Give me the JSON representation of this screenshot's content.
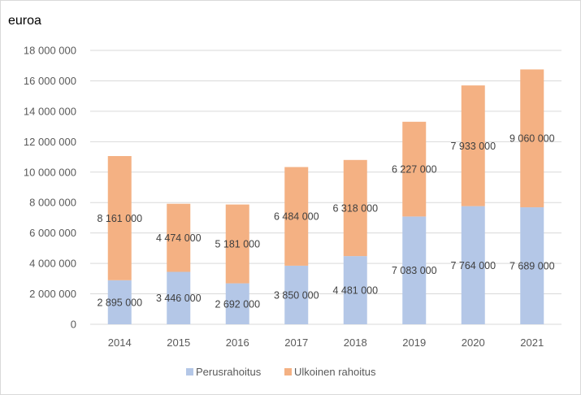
{
  "chart_data": {
    "type": "bar",
    "stacked": true,
    "unit_label": "euroa",
    "categories": [
      "2014",
      "2015",
      "2016",
      "2017",
      "2018",
      "2019",
      "2020",
      "2021"
    ],
    "series": [
      {
        "name": "Perusrahoitus",
        "color": "#b4c7e7",
        "values": [
          2895000,
          3446000,
          2692000,
          3850000,
          4481000,
          7083000,
          7764000,
          7689000
        ],
        "labels": [
          "2 895 000",
          "3 446 000",
          "2 692 000",
          "3 850 000",
          "4 481 000",
          "7 083 000",
          "7 764 000",
          "7 689 000"
        ]
      },
      {
        "name": "Ulkoinen rahoitus",
        "color": "#f4b183",
        "values": [
          8161000,
          4474000,
          5181000,
          6484000,
          6318000,
          6227000,
          7933000,
          9060000
        ],
        "labels": [
          "8 161 000",
          "4 474 000",
          "5 181 000",
          "6 484 000",
          "6 318 000",
          "6 227 000",
          "7 933 000",
          "9 060 000"
        ]
      }
    ],
    "ylim": [
      0,
      18000000
    ],
    "y_ticks": [
      0,
      2000000,
      4000000,
      6000000,
      8000000,
      10000000,
      12000000,
      14000000,
      16000000,
      18000000
    ],
    "y_tick_labels": [
      "0",
      "2 000 000",
      "4 000 000",
      "6 000 000",
      "8 000 000",
      "10 000 000",
      "12 000 000",
      "14 000 000",
      "16 000 000",
      "18 000 000"
    ],
    "grid": true,
    "legend_position": "bottom-center"
  }
}
